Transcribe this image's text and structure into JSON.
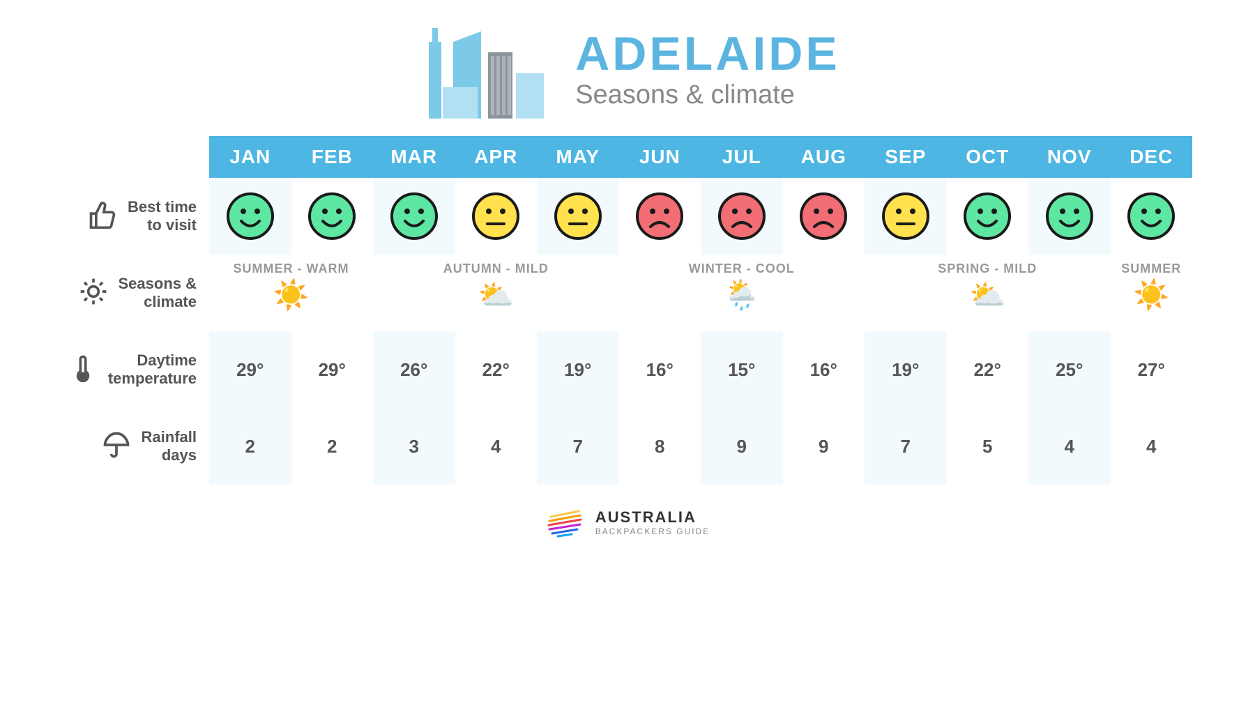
{
  "title": "ADELAIDE",
  "subtitle": "Seasons & climate",
  "colors": {
    "header_bg": "#4db6e2",
    "title_color": "#5bb5e0",
    "subtitle_color": "#888888",
    "text_color": "#555555",
    "alt_row_bg": "#f2fafd",
    "face_good": "#5ee6a3",
    "face_neutral": "#ffe24d",
    "face_bad": "#f26d74",
    "face_stroke": "#1a1a1a"
  },
  "months": [
    "JAN",
    "FEB",
    "MAR",
    "APR",
    "MAY",
    "JUN",
    "JUL",
    "AUG",
    "SEP",
    "OCT",
    "NOV",
    "DEC"
  ],
  "rows": {
    "best_time": {
      "label": "Best time\nto visit",
      "icon": "thumb",
      "values": [
        "good",
        "good",
        "good",
        "neutral",
        "neutral",
        "bad",
        "bad",
        "bad",
        "neutral",
        "good",
        "good",
        "good"
      ]
    },
    "seasons": {
      "label": "Seasons &\nclimate",
      "icon": "sun",
      "blocks": [
        {
          "span": 2,
          "label": "SUMMER - WARM",
          "weather": "sun"
        },
        {
          "span": 3,
          "label": "AUTUMN - MILD",
          "weather": "partly"
        },
        {
          "span": 3,
          "label": "WINTER - COOL",
          "weather": "rain"
        },
        {
          "span": 3,
          "label": "SPRING - MILD",
          "weather": "partly"
        },
        {
          "span": 1,
          "label": "SUMMER",
          "weather": "sun"
        }
      ]
    },
    "temperature": {
      "label": "Daytime\ntemperature",
      "icon": "thermo",
      "unit": "°",
      "values": [
        29,
        29,
        26,
        22,
        19,
        16,
        15,
        16,
        19,
        22,
        25,
        27
      ]
    },
    "rainfall": {
      "label": "Rainfall\ndays",
      "icon": "umbrella",
      "values": [
        2,
        2,
        3,
        4,
        7,
        8,
        9,
        9,
        7,
        5,
        4,
        4
      ]
    }
  },
  "footer": {
    "line1": "AUSTRALIA",
    "line2": "BACKPACKERS GUIDE"
  }
}
